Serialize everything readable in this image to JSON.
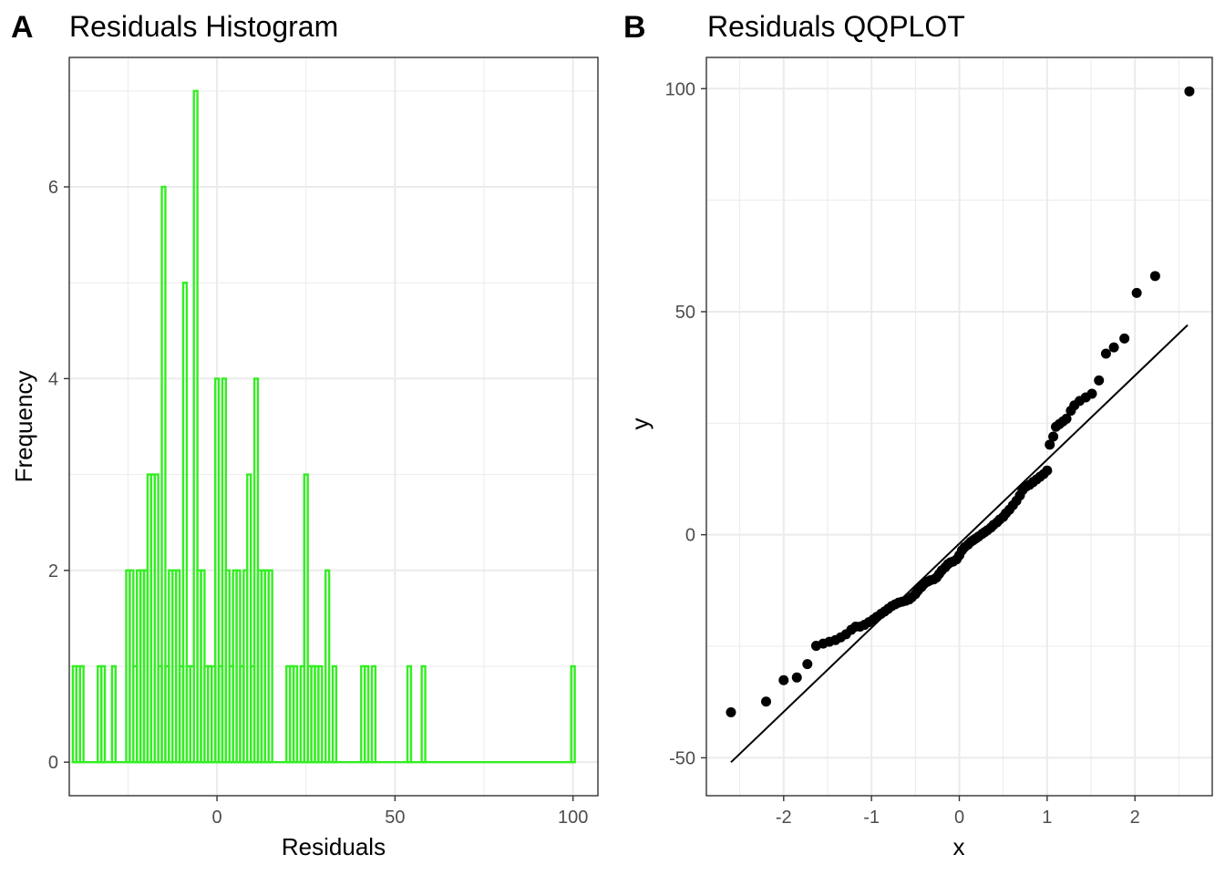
{
  "panels": {
    "a": {
      "tag": "A",
      "title": "Residuals Histogram"
    },
    "b": {
      "tag": "B",
      "title": "Residuals QQPLOT"
    }
  },
  "colors": {
    "hist_fill": "#33ee22",
    "points": "#000000",
    "line": "#000000"
  },
  "chart_data": [
    {
      "type": "bar",
      "subtype": "histogram",
      "title": "Residuals Histogram",
      "xlabel": "Residuals",
      "ylabel": "Frequency",
      "xlim": [
        -41.5,
        107
      ],
      "ylim": [
        -0.35,
        7.35
      ],
      "xticks": [
        0,
        50,
        100
      ],
      "yticks": [
        0,
        2,
        4,
        6
      ],
      "grid": true,
      "bin_width": 1,
      "bins": [
        {
          "x": -40,
          "count": 1
        },
        {
          "x": -39,
          "count": 1
        },
        {
          "x": -38,
          "count": 1
        },
        {
          "x": -33,
          "count": 1
        },
        {
          "x": -32,
          "count": 1
        },
        {
          "x": -29,
          "count": 1
        },
        {
          "x": -25,
          "count": 2
        },
        {
          "x": -24,
          "count": 2
        },
        {
          "x": -23,
          "count": 1
        },
        {
          "x": -22,
          "count": 2
        },
        {
          "x": -21,
          "count": 2
        },
        {
          "x": -20,
          "count": 2
        },
        {
          "x": -19,
          "count": 3
        },
        {
          "x": -18,
          "count": 3
        },
        {
          "x": -17,
          "count": 3
        },
        {
          "x": -16,
          "count": 1
        },
        {
          "x": -15,
          "count": 6
        },
        {
          "x": -14,
          "count": 1
        },
        {
          "x": -13,
          "count": 2
        },
        {
          "x": -12,
          "count": 2
        },
        {
          "x": -11,
          "count": 2
        },
        {
          "x": -10,
          "count": 1
        },
        {
          "x": -9,
          "count": 5
        },
        {
          "x": -8,
          "count": 1
        },
        {
          "x": -7,
          "count": 1
        },
        {
          "x": -6,
          "count": 7
        },
        {
          "x": -5,
          "count": 2
        },
        {
          "x": -4,
          "count": 2
        },
        {
          "x": -3,
          "count": 1
        },
        {
          "x": -2,
          "count": 1
        },
        {
          "x": -1,
          "count": 1
        },
        {
          "x": 0,
          "count": 4
        },
        {
          "x": 1,
          "count": 1
        },
        {
          "x": 2,
          "count": 4
        },
        {
          "x": 3,
          "count": 2
        },
        {
          "x": 4,
          "count": 1
        },
        {
          "x": 5,
          "count": 2
        },
        {
          "x": 6,
          "count": 2
        },
        {
          "x": 7,
          "count": 1
        },
        {
          "x": 8,
          "count": 2
        },
        {
          "x": 9,
          "count": 3
        },
        {
          "x": 10,
          "count": 1
        },
        {
          "x": 11,
          "count": 4
        },
        {
          "x": 12,
          "count": 2
        },
        {
          "x": 13,
          "count": 2
        },
        {
          "x": 14,
          "count": 2
        },
        {
          "x": 15,
          "count": 2
        },
        {
          "x": 20,
          "count": 1
        },
        {
          "x": 21,
          "count": 1
        },
        {
          "x": 22,
          "count": 1
        },
        {
          "x": 24,
          "count": 1
        },
        {
          "x": 25,
          "count": 3
        },
        {
          "x": 26,
          "count": 1
        },
        {
          "x": 27,
          "count": 1
        },
        {
          "x": 28,
          "count": 1
        },
        {
          "x": 29,
          "count": 1
        },
        {
          "x": 31,
          "count": 2
        },
        {
          "x": 33,
          "count": 1
        },
        {
          "x": 41,
          "count": 1
        },
        {
          "x": 42,
          "count": 1
        },
        {
          "x": 44,
          "count": 1
        },
        {
          "x": 54,
          "count": 1
        },
        {
          "x": 58,
          "count": 1
        },
        {
          "x": 100,
          "count": 1
        }
      ]
    },
    {
      "type": "scatter",
      "subtype": "qq",
      "title": "Residuals QQPLOT",
      "xlabel": "x",
      "ylabel": "y",
      "xlim": [
        -2.88,
        2.88
      ],
      "ylim": [
        -58.5,
        107
      ],
      "xticks": [
        -2,
        -1,
        0,
        1,
        2
      ],
      "yticks": [
        -50,
        0,
        50,
        100
      ],
      "grid": true,
      "line": {
        "x": [
          -2.6,
          2.6
        ],
        "y": [
          -51,
          47
        ]
      },
      "points": [
        [
          -2.6,
          -39.8
        ],
        [
          -2.2,
          -37.4
        ],
        [
          -2.0,
          -32.6
        ],
        [
          -1.85,
          -32.0
        ],
        [
          -1.73,
          -29.0
        ],
        [
          -1.63,
          -24.9
        ],
        [
          -1.55,
          -24.4
        ],
        [
          -1.48,
          -24.0
        ],
        [
          -1.41,
          -23.6
        ],
        [
          -1.35,
          -23.0
        ],
        [
          -1.29,
          -22.3
        ],
        [
          -1.23,
          -21.3
        ],
        [
          -1.18,
          -20.6
        ],
        [
          -1.13,
          -20.6
        ],
        [
          -1.08,
          -20.2
        ],
        [
          -1.03,
          -19.6
        ],
        [
          -0.98,
          -19.0
        ],
        [
          -0.94,
          -18.4
        ],
        [
          -0.89,
          -17.7
        ],
        [
          -0.85,
          -17.2
        ],
        [
          -0.81,
          -16.6
        ],
        [
          -0.77,
          -16.0
        ],
        [
          -0.73,
          -15.6
        ],
        [
          -0.69,
          -15.2
        ],
        [
          -0.65,
          -15.0
        ],
        [
          -0.61,
          -14.8
        ],
        [
          -0.57,
          -14.5
        ],
        [
          -0.54,
          -14.0
        ],
        [
          -0.5,
          -13.3
        ],
        [
          -0.47,
          -12.5
        ],
        [
          -0.43,
          -11.7
        ],
        [
          -0.4,
          -11.0
        ],
        [
          -0.36,
          -10.5
        ],
        [
          -0.33,
          -10.2
        ],
        [
          -0.29,
          -10.0
        ],
        [
          -0.26,
          -9.6
        ],
        [
          -0.23,
          -8.8
        ],
        [
          -0.2,
          -8.0
        ],
        [
          -0.16,
          -7.3
        ],
        [
          -0.13,
          -6.6
        ],
        [
          -0.1,
          -6.2
        ],
        [
          -0.07,
          -6.0
        ],
        [
          -0.03,
          -5.5
        ],
        [
          0.0,
          -4.6
        ],
        [
          0.03,
          -3.5
        ],
        [
          0.06,
          -2.8
        ],
        [
          0.1,
          -2.2
        ],
        [
          0.13,
          -1.6
        ],
        [
          0.16,
          -1.2
        ],
        [
          0.19,
          -0.8
        ],
        [
          0.22,
          -0.4
        ],
        [
          0.26,
          0.2
        ],
        [
          0.29,
          0.6
        ],
        [
          0.32,
          1.0
        ],
        [
          0.36,
          1.6
        ],
        [
          0.39,
          2.2
        ],
        [
          0.43,
          2.8
        ],
        [
          0.46,
          3.4
        ],
        [
          0.5,
          4.0
        ],
        [
          0.53,
          4.8
        ],
        [
          0.57,
          5.6
        ],
        [
          0.61,
          6.6
        ],
        [
          0.65,
          7.6
        ],
        [
          0.69,
          8.8
        ],
        [
          0.72,
          10.0
        ],
        [
          0.76,
          10.8
        ],
        [
          0.8,
          11.2
        ],
        [
          0.84,
          11.8
        ],
        [
          0.88,
          12.4
        ],
        [
          0.92,
          13.0
        ],
        [
          0.96,
          13.6
        ],
        [
          1.0,
          14.4
        ],
        [
          1.03,
          20.2
        ],
        [
          1.07,
          22.0
        ],
        [
          1.1,
          24.2
        ],
        [
          1.14,
          24.8
        ],
        [
          1.18,
          25.4
        ],
        [
          1.22,
          26.0
        ],
        [
          1.27,
          27.8
        ],
        [
          1.31,
          29.0
        ],
        [
          1.37,
          30.0
        ],
        [
          1.44,
          30.8
        ],
        [
          1.51,
          31.6
        ],
        [
          1.59,
          34.6
        ],
        [
          1.67,
          40.6
        ],
        [
          1.76,
          42.0
        ],
        [
          1.88,
          44.0
        ],
        [
          2.02,
          54.2
        ],
        [
          2.23,
          58.0
        ],
        [
          2.62,
          99.4
        ]
      ]
    }
  ]
}
